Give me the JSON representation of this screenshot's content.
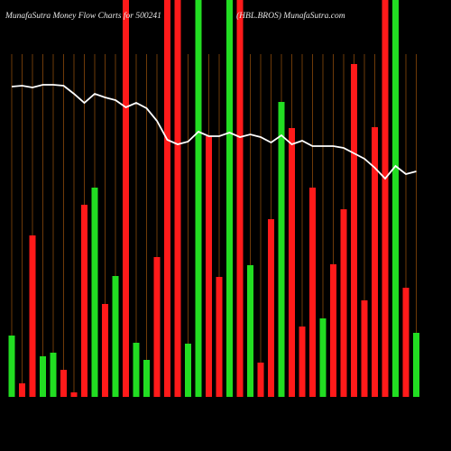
{
  "chart_data": {
    "type": "bar",
    "title": "MunafaSutra  Money Flow  Charts for 500241",
    "subtitle": "(HBL.BROS) MunafaSutra.com",
    "categories": [
      null,
      null,
      null,
      null,
      null,
      null,
      null,
      null,
      null,
      null,
      null,
      null,
      null,
      null,
      null,
      null,
      null,
      null,
      null,
      null,
      null,
      null,
      null,
      null,
      null,
      null,
      null,
      null,
      null,
      null,
      null,
      null,
      null,
      null,
      null,
      null,
      null,
      null,
      null,
      null
    ],
    "values": [
      68,
      15,
      179,
      45,
      49,
      30,
      5,
      213,
      232,
      103,
      134,
      440,
      60,
      41,
      155,
      440,
      440,
      59,
      440,
      289,
      133,
      440,
      440,
      146,
      38,
      197,
      327,
      298,
      78,
      232,
      87,
      147,
      208,
      369,
      107,
      299,
      440,
      440,
      121,
      71
    ],
    "colors": [
      "#22dd22",
      "#ff1a1a",
      "#ff1a1a",
      "#22dd22",
      "#22dd22",
      "#ff1a1a",
      "#ff1a1a",
      "#ff1a1a",
      "#22dd22",
      "#ff1a1a",
      "#22dd22",
      "#ff1a1a",
      "#22dd22",
      "#22dd22",
      "#ff1a1a",
      "#ff1a1a",
      "#ff1a1a",
      "#22dd22",
      "#22dd22",
      "#ff1a1a",
      "#ff1a1a",
      "#22dd22",
      "#ff1a1a",
      "#22dd22",
      "#ff1a1a",
      "#ff1a1a",
      "#22dd22",
      "#ff1a1a",
      "#ff1a1a",
      "#ff1a1a",
      "#22dd22",
      "#ff1a1a",
      "#ff1a1a",
      "#ff1a1a",
      "#ff1a1a",
      "#ff1a1a",
      "#ff1a1a",
      "#22dd22",
      "#ff1a1a",
      "#22dd22"
    ],
    "line": {
      "color": "#ffffff",
      "values": [
        344,
        345,
        343,
        346,
        346,
        345,
        336,
        326,
        336,
        332,
        329,
        321,
        326,
        320,
        306,
        285,
        280,
        283,
        294,
        289,
        289,
        293,
        288,
        291,
        288,
        282,
        290,
        280,
        284,
        278,
        278,
        278,
        276,
        270,
        264,
        254,
        242,
        256,
        247,
        250
      ]
    },
    "ylim": [
      0,
      440
    ],
    "grid_color": "#8a4a0a"
  }
}
